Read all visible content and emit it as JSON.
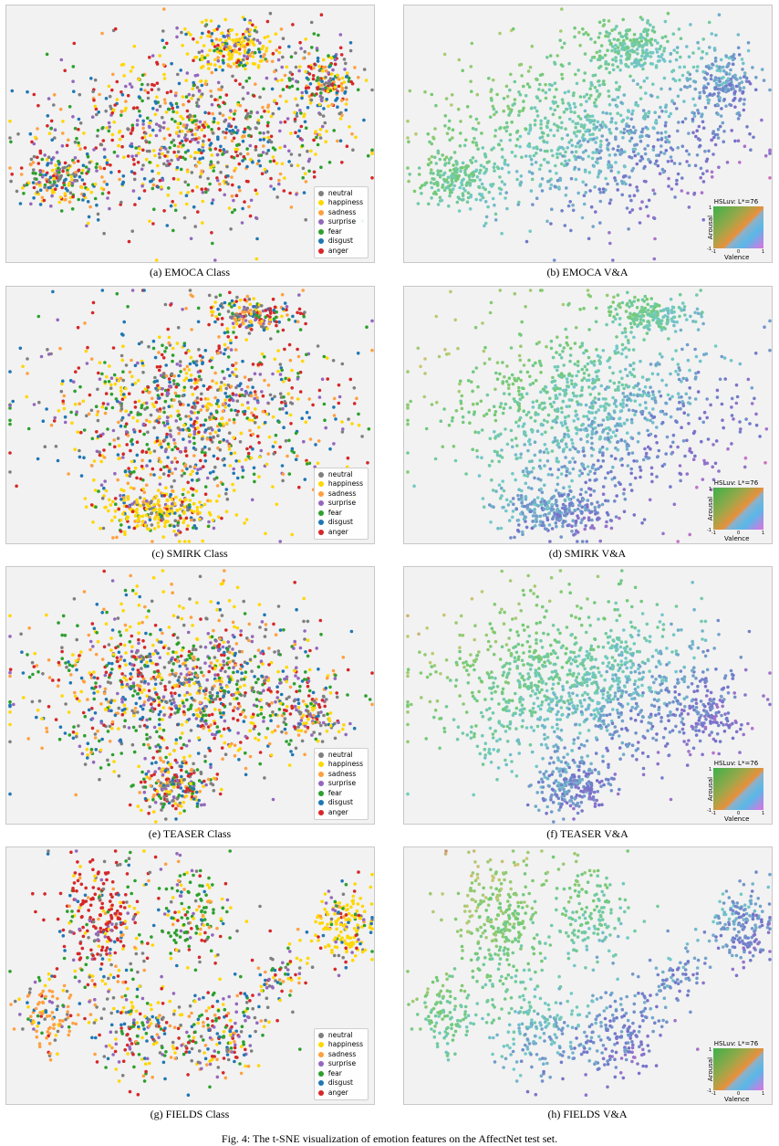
{
  "figure_caption": "Fig. 4: The t-SNE visualization of emotion features on the AffectNet test set.",
  "class_colors": {
    "neutral": "#7f7f7f",
    "happiness": "#ffd700",
    "sadness": "#ffa040",
    "surprise": "#9467bd",
    "fear": "#2ca02c",
    "disgust": "#1f77b4",
    "anger": "#d62728"
  },
  "legend_labels": [
    "neutral",
    "happiness",
    "sadness",
    "surprise",
    "fear",
    "disgust",
    "anger"
  ],
  "colormap": {
    "title": "HSLuv: L*=76",
    "xlabel": "Valence",
    "ylabel": "Arousal",
    "ticks": [
      "1",
      "-1",
      "-1",
      "0",
      "1"
    ]
  },
  "panels": [
    {
      "caption": "(a) EMOCA Class"
    },
    {
      "caption": "(b) EMOCA V&A"
    },
    {
      "caption": "(c) SMIRK Class"
    },
    {
      "caption": "(d) SMIRK V&A"
    },
    {
      "caption": "(e) TEASER Class"
    },
    {
      "caption": "(f) TEASER V&A"
    },
    {
      "caption": "(g) FIELDS Class"
    },
    {
      "caption": "(h) FIELDS V&A"
    }
  ],
  "chart_data": [
    {
      "type": "scatter",
      "model": "EMOCA",
      "coloring": "class",
      "series": [
        {
          "name": "neutral"
        },
        {
          "name": "happiness"
        },
        {
          "name": "sadness"
        },
        {
          "name": "surprise"
        },
        {
          "name": "fear"
        },
        {
          "name": "disgust"
        },
        {
          "name": "anger"
        }
      ]
    },
    {
      "type": "scatter",
      "model": "EMOCA",
      "coloring": "valence-arousal"
    },
    {
      "type": "scatter",
      "model": "SMIRK",
      "coloring": "class",
      "series": [
        {
          "name": "neutral"
        },
        {
          "name": "happiness"
        },
        {
          "name": "sadness"
        },
        {
          "name": "surprise"
        },
        {
          "name": "fear"
        },
        {
          "name": "disgust"
        },
        {
          "name": "anger"
        }
      ]
    },
    {
      "type": "scatter",
      "model": "SMIRK",
      "coloring": "valence-arousal"
    },
    {
      "type": "scatter",
      "model": "TEASER",
      "coloring": "class",
      "series": [
        {
          "name": "neutral"
        },
        {
          "name": "happiness"
        },
        {
          "name": "sadness"
        },
        {
          "name": "surprise"
        },
        {
          "name": "fear"
        },
        {
          "name": "disgust"
        },
        {
          "name": "anger"
        }
      ]
    },
    {
      "type": "scatter",
      "model": "TEASER",
      "coloring": "valence-arousal"
    },
    {
      "type": "scatter",
      "model": "FIELDS",
      "coloring": "class",
      "series": [
        {
          "name": "neutral"
        },
        {
          "name": "happiness"
        },
        {
          "name": "sadness"
        },
        {
          "name": "surprise"
        },
        {
          "name": "fear"
        },
        {
          "name": "disgust"
        },
        {
          "name": "anger"
        }
      ]
    },
    {
      "type": "scatter",
      "model": "FIELDS",
      "coloring": "valence-arousal"
    }
  ]
}
